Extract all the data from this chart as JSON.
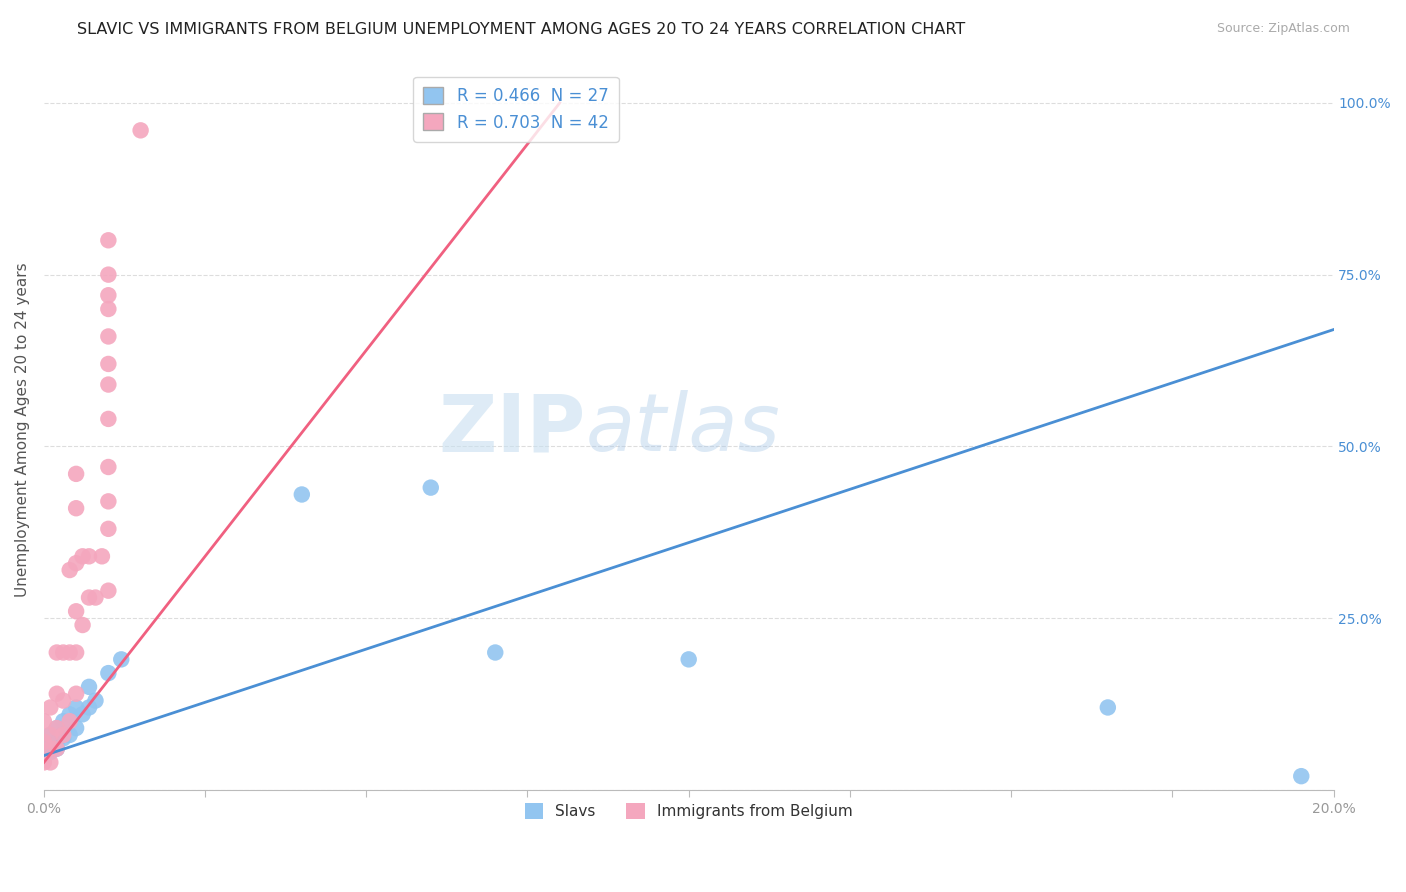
{
  "title": "SLAVIC VS IMMIGRANTS FROM BELGIUM UNEMPLOYMENT AMONG AGES 20 TO 24 YEARS CORRELATION CHART",
  "source": "Source: ZipAtlas.com",
  "ylabel": "Unemployment Among Ages 20 to 24 years",
  "xlim": [
    0.0,
    0.2
  ],
  "ylim": [
    0.0,
    1.05
  ],
  "xtick_positions": [
    0.0,
    0.025,
    0.05,
    0.075,
    0.1,
    0.125,
    0.15,
    0.175,
    0.2
  ],
  "xtick_labels_show": [
    "0.0%",
    "",
    "",
    "",
    "",
    "",
    "",
    "",
    "20.0%"
  ],
  "ytick_positions": [
    0.0,
    0.25,
    0.5,
    0.75,
    1.0
  ],
  "ytick_labels": [
    "",
    "25.0%",
    "50.0%",
    "75.0%",
    "100.0%"
  ],
  "slavs_color": "#92c5f0",
  "belgium_color": "#f4a7be",
  "slavs_line_color": "#4a8fd4",
  "belgium_line_color": "#f06080",
  "slavs_R": 0.466,
  "slavs_N": 27,
  "belgium_R": 0.703,
  "belgium_N": 42,
  "watermark_zip": "ZIP",
  "watermark_atlas": "atlas",
  "background_color": "#ffffff",
  "grid_color": "#dddddd",
  "slavs_x": [
    0.0,
    0.0,
    0.0,
    0.001,
    0.001,
    0.001,
    0.002,
    0.002,
    0.002,
    0.003,
    0.003,
    0.004,
    0.004,
    0.005,
    0.005,
    0.006,
    0.007,
    0.007,
    0.008,
    0.01,
    0.012,
    0.04,
    0.06,
    0.07,
    0.1,
    0.165,
    0.195
  ],
  "slavs_y": [
    0.05,
    0.06,
    0.07,
    0.055,
    0.065,
    0.08,
    0.06,
    0.07,
    0.09,
    0.075,
    0.1,
    0.08,
    0.11,
    0.09,
    0.12,
    0.11,
    0.12,
    0.15,
    0.13,
    0.17,
    0.19,
    0.43,
    0.44,
    0.2,
    0.19,
    0.12,
    0.02
  ],
  "belgium_x": [
    0.0,
    0.0,
    0.0,
    0.001,
    0.001,
    0.001,
    0.001,
    0.002,
    0.002,
    0.002,
    0.002,
    0.003,
    0.003,
    0.003,
    0.004,
    0.004,
    0.004,
    0.005,
    0.005,
    0.005,
    0.005,
    0.005,
    0.005,
    0.006,
    0.006,
    0.007,
    0.007,
    0.008,
    0.009,
    0.01,
    0.01,
    0.01,
    0.01,
    0.01,
    0.01,
    0.01,
    0.01,
    0.01,
    0.01,
    0.01,
    0.01,
    0.015
  ],
  "belgium_y": [
    0.04,
    0.07,
    0.1,
    0.04,
    0.06,
    0.08,
    0.12,
    0.06,
    0.09,
    0.14,
    0.2,
    0.08,
    0.13,
    0.2,
    0.1,
    0.2,
    0.32,
    0.14,
    0.2,
    0.26,
    0.33,
    0.41,
    0.46,
    0.24,
    0.34,
    0.28,
    0.34,
    0.28,
    0.34,
    0.29,
    0.38,
    0.42,
    0.47,
    0.54,
    0.59,
    0.62,
    0.66,
    0.7,
    0.72,
    0.75,
    0.8,
    0.96
  ],
  "slavs_line_x0": 0.0,
  "slavs_line_y0": 0.05,
  "slavs_line_x1": 0.2,
  "slavs_line_y1": 0.67,
  "belgium_line_x0": 0.0,
  "belgium_line_y0": 0.04,
  "belgium_line_x1": 0.08,
  "belgium_line_y1": 1.0,
  "title_fontsize": 11.5,
  "axis_label_fontsize": 11,
  "tick_fontsize": 10,
  "legend_fontsize": 12
}
